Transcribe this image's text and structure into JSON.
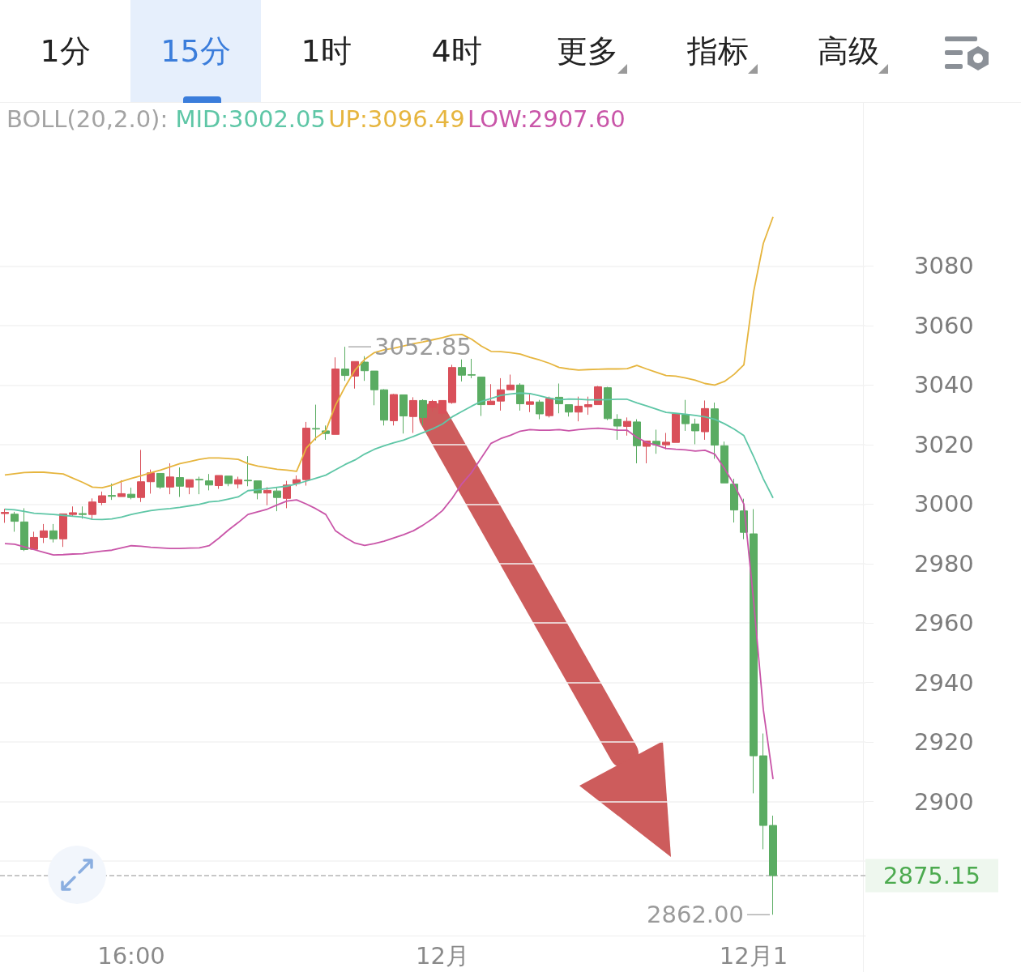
{
  "chart_data": {
    "type": "candlestick",
    "legend_title": "BOLL(20,2.0):",
    "legend": "top",
    "grid": "y",
    "marker": "none",
    "line_style": "solid",
    "categories": [
      null,
      null,
      null,
      null,
      null,
      null,
      null,
      null,
      null,
      null,
      null,
      null,
      null,
      "16:00",
      null,
      null,
      null,
      null,
      null,
      null,
      null,
      null,
      null,
      null,
      null,
      null,
      null,
      null,
      null,
      null,
      null,
      null,
      null,
      null,
      null,
      null,
      null,
      null,
      null,
      null,
      null,
      null,
      null,
      null,
      null,
      "12月",
      null,
      null,
      null,
      null,
      null,
      null,
      null,
      null,
      null,
      null,
      null,
      null,
      null,
      null,
      null,
      null,
      null,
      null,
      null,
      null,
      null,
      null,
      null,
      null,
      null,
      null,
      null,
      null,
      null,
      null,
      null,
      "12月1",
      null,
      null
    ],
    "ohlc": [
      [
        2996.8,
        2998.4,
        2993.7,
        2997.2
      ],
      [
        2996.6,
        2997.4,
        2990.7,
        2994.2
      ],
      [
        2994.0,
        2998.6,
        2984.2,
        2984.7
      ],
      [
        2984.8,
        2990.7,
        2984.8,
        2988.8
      ],
      [
        2988.8,
        2993.3,
        2986.9,
        2991.0
      ],
      [
        2991.0,
        2993.3,
        2987.1,
        2988.3
      ],
      [
        2988.3,
        2996.7,
        2985.6,
        2996.7
      ],
      [
        2996.5,
        2999.2,
        2995.8,
        2997.1
      ],
      [
        2996.8,
        2999.2,
        2995.1,
        2996.5
      ],
      [
        2996.5,
        3001.9,
        2995.1,
        3000.7
      ],
      [
        3000.5,
        3004.2,
        2999.6,
        3002.8
      ],
      [
        3002.9,
        3006.9,
        3001.4,
        3002.6
      ],
      [
        3002.5,
        3008.0,
        3002.5,
        3003.5
      ],
      [
        3003.3,
        3005.5,
        3001.6,
        3002.2
      ],
      [
        3002.2,
        3018.2,
        3000.7,
        3007.5
      ],
      [
        3007.5,
        3011.6,
        3003.5,
        3010.5
      ],
      [
        3010.3,
        3010.3,
        3005.1,
        3005.7
      ],
      [
        3005.7,
        3013.7,
        3003.3,
        3009.1
      ],
      [
        3008.9,
        3012.3,
        3002.4,
        3006.0
      ],
      [
        3005.7,
        3008.2,
        3003.3,
        3008.2
      ],
      [
        3008.3,
        3009.2,
        3003.3,
        3008.1
      ],
      [
        3007.8,
        3010.1,
        3004.6,
        3006.4
      ],
      [
        3006.2,
        3009.6,
        3005.1,
        3009.6
      ],
      [
        3009.4,
        3009.4,
        3006.0,
        3006.9
      ],
      [
        3006.7,
        3009.2,
        3005.3,
        3008.2
      ],
      [
        3008.0,
        3016.1,
        3006.0,
        3007.8
      ],
      [
        3007.8,
        3007.8,
        3001.6,
        3003.7
      ],
      [
        3003.7,
        3005.7,
        2999.6,
        3004.6
      ],
      [
        3004.4,
        3005.5,
        2997.6,
        3002.2
      ],
      [
        3001.9,
        3007.8,
        2998.6,
        3006.4
      ],
      [
        3006.9,
        3009.6,
        3006.0,
        3008.2
      ],
      [
        3008.2,
        3027.6,
        3006.2,
        3025.5
      ],
      [
        3025.4,
        3033.4,
        3021.4,
        3025.2
      ],
      [
        3024.6,
        3026.4,
        3021.6,
        3023.7
      ],
      [
        3023.4,
        3049.3,
        3023.4,
        3045.4
      ],
      [
        3045.4,
        3052.85,
        3041.4,
        3043.2
      ],
      [
        3043.0,
        3047.9,
        3038.8,
        3047.9
      ],
      [
        3047.7,
        3049.7,
        3041.4,
        3044.8
      ],
      [
        3044.7,
        3044.7,
        3033.2,
        3038.4
      ],
      [
        3038.4,
        3038.6,
        3026.4,
        3028.2
      ],
      [
        3028.0,
        3037.0,
        3026.4,
        3036.8
      ],
      [
        3036.7,
        3036.7,
        3023.7,
        3029.6
      ],
      [
        3029.4,
        3035.9,
        3023.9,
        3034.8
      ],
      [
        3034.8,
        3035.2,
        3026.4,
        3029.1
      ],
      [
        3032.5,
        3035.0,
        3031.0,
        3034.5
      ],
      [
        3030.5,
        3034.8,
        3029.5,
        3034.8
      ],
      [
        3034.1,
        3046.8,
        3033.7,
        3045.9
      ],
      [
        3045.9,
        3048.6,
        3041.2,
        3043.3
      ],
      [
        3043.5,
        3048.8,
        3042.3,
        3043.3
      ],
      [
        3042.7,
        3042.7,
        3029.6,
        3033.4
      ],
      [
        3033.4,
        3040.3,
        3033.4,
        3034.6
      ],
      [
        3034.6,
        3042.3,
        3031.4,
        3038.4
      ],
      [
        3038.4,
        3043.5,
        3038.4,
        3040.0
      ],
      [
        3040.0,
        3040.6,
        3031.4,
        3033.7
      ],
      [
        3033.5,
        3037.3,
        3030.9,
        3034.4
      ],
      [
        3034.3,
        3035.0,
        3028.5,
        3030.3
      ],
      [
        3029.7,
        3036.1,
        3029.1,
        3035.5
      ],
      [
        3035.9,
        3040.5,
        3030.5,
        3033.7
      ],
      [
        3033.4,
        3033.4,
        3029.4,
        3030.9
      ],
      [
        3030.9,
        3036.1,
        3027.8,
        3032.9
      ],
      [
        3032.7,
        3036.1,
        3030.0,
        3033.4
      ],
      [
        3033.4,
        3039.7,
        3033.4,
        3039.4
      ],
      [
        3039.1,
        3039.4,
        3028.2,
        3028.7
      ],
      [
        3028.5,
        3030.2,
        3021.6,
        3026.2
      ],
      [
        3026.1,
        3029.1,
        3023.0,
        3027.8
      ],
      [
        3027.6,
        3028.5,
        3013.7,
        3019.6
      ],
      [
        3019.4,
        3021.2,
        3013.7,
        3021.2
      ],
      [
        3021.1,
        3025.0,
        3016.9,
        3019.9
      ],
      [
        3019.9,
        3023.9,
        3018.4,
        3020.8
      ],
      [
        3020.7,
        3030.3,
        3020.7,
        3030.3
      ],
      [
        3030.0,
        3035.0,
        3024.6,
        3027.0
      ],
      [
        3026.9,
        3028.7,
        3020.1,
        3024.6
      ],
      [
        3024.3,
        3034.8,
        3021.6,
        3032.1
      ],
      [
        3032.0,
        3034.1,
        3015.2,
        3019.8
      ],
      [
        3019.6,
        3021.0,
        3007.1,
        3007.1
      ],
      [
        3006.7,
        3008.5,
        2993.8,
        2998.0
      ],
      [
        2997.7,
        3001.8,
        2988.2,
        2990.5
      ],
      [
        2990.0,
        2998.3,
        2902.8,
        2915.4
      ],
      [
        2915.4,
        2922.9,
        2884.0,
        2892.0
      ],
      [
        2892.0,
        2895.3,
        2862.0,
        2875.15
      ]
    ],
    "colors": [
      "#d9505a",
      "#5aac62",
      "#5aac62",
      "#d9505a",
      "#d9505a",
      "#5aac62",
      "#d9505a",
      "#d9505a",
      "#5aac62",
      "#d9505a",
      "#d9505a",
      "#5aac62",
      "#d9505a",
      "#5aac62",
      "#d9505a",
      "#d9505a",
      "#5aac62",
      "#d9505a",
      "#5aac62",
      "#d9505a",
      "#5aac62",
      "#5aac62",
      "#d9505a",
      "#5aac62",
      "#d9505a",
      "#5aac62",
      "#5aac62",
      "#d9505a",
      "#5aac62",
      "#d9505a",
      "#d9505a",
      "#d9505a",
      "#5aac62",
      "#5aac62",
      "#d9505a",
      "#5aac62",
      "#d9505a",
      "#5aac62",
      "#5aac62",
      "#5aac62",
      "#d9505a",
      "#5aac62",
      "#d9505a",
      "#5aac62",
      "#d9505a",
      "#d9505a",
      "#d9505a",
      "#5aac62",
      "#5aac62",
      "#5aac62",
      "#d9505a",
      "#d9505a",
      "#d9505a",
      "#5aac62",
      "#d9505a",
      "#5aac62",
      "#d9505a",
      "#5aac62",
      "#5aac62",
      "#d9505a",
      "#d9505a",
      "#d9505a",
      "#5aac62",
      "#5aac62",
      "#d9505a",
      "#5aac62",
      "#d9505a",
      "#5aac62",
      "#d9505a",
      "#d9505a",
      "#5aac62",
      "#5aac62",
      "#d9505a",
      "#5aac62",
      "#5aac62",
      "#5aac62",
      "#5aac62",
      "#5aac62",
      "#5aac62",
      "#5aac62"
    ],
    "series": [
      {
        "type": "line",
        "name": "MID:3002.05",
        "color": "#5ec6a6",
        "values": [
          2998.3,
          2998.1,
          2997.5,
          2996.9,
          2996.7,
          2996.5,
          2996.2,
          2995.9,
          2995.6,
          2994.9,
          2994.8,
          2995.0,
          2995.6,
          2996.5,
          2997.2,
          2997.8,
          2998.2,
          2998.5,
          2998.9,
          2999.4,
          2999.9,
          3000.7,
          3001.0,
          3001.7,
          3002.4,
          3004.5,
          3004.8,
          3005.2,
          3005.6,
          3006.0,
          3006.8,
          3007.7,
          3008.7,
          3009.7,
          3011.5,
          3013.3,
          3014.8,
          3016.8,
          3018.4,
          3019.6,
          3020.6,
          3021.5,
          3022.7,
          3024.0,
          3025.3,
          3026.9,
          3029.3,
          3031.1,
          3032.9,
          3034.5,
          3035.5,
          3036.5,
          3037.0,
          3037.3,
          3037.1,
          3036.4,
          3035.6,
          3035.0,
          3035.3,
          3035.2,
          3035.0,
          3035.0,
          3035.1,
          3035.2,
          3035.2,
          3034.0,
          3033.0,
          3031.9,
          3030.8,
          3030.5,
          3030.2,
          3029.8,
          3029.3,
          3028.5,
          3027.0,
          3025.2,
          3023.0,
          3016.0,
          3008.5,
          3002.05
        ]
      },
      {
        "type": "line",
        "name": "UP:3096.49",
        "color": "#e6b53e",
        "values": [
          3009.8,
          3010.2,
          3010.6,
          3010.7,
          3010.7,
          3010.4,
          3010.1,
          3008.7,
          3007.3,
          3005.7,
          3005.5,
          3006.3,
          3007.6,
          3008.6,
          3009.5,
          3010.5,
          3011.4,
          3012.5,
          3013.6,
          3014.3,
          3015.0,
          3015.5,
          3015.5,
          3015.3,
          3015.0,
          3013.6,
          3012.8,
          3012.2,
          3011.7,
          3011.4,
          3011.0,
          3018.8,
          3022.3,
          3024.6,
          3033.2,
          3039.5,
          3045.0,
          3048.6,
          3050.9,
          3051.8,
          3052.4,
          3053.1,
          3053.9,
          3054.5,
          3055.2,
          3055.9,
          3056.8,
          3057.0,
          3055.4,
          3053.1,
          3051.3,
          3051.2,
          3050.9,
          3050.4,
          3049.3,
          3048.4,
          3047.3,
          3045.9,
          3045.4,
          3045.0,
          3045.2,
          3045.3,
          3045.4,
          3045.4,
          3045.5,
          3046.6,
          3045.4,
          3044.3,
          3043.2,
          3043.0,
          3042.4,
          3041.6,
          3040.5,
          3040.0,
          3041.2,
          3043.6,
          3046.8,
          3071.3,
          3087.6,
          3096.49
        ]
      },
      {
        "type": "line",
        "name": "LOW:2907.60",
        "color": "#c955a8",
        "values": [
          2986.7,
          2986.5,
          2985.6,
          2984.7,
          2983.8,
          2982.9,
          2983.0,
          2983.2,
          2983.3,
          2983.8,
          2984.2,
          2984.5,
          2985.3,
          2986.0,
          2985.8,
          2985.5,
          2985.3,
          2985.1,
          2985.1,
          2985.2,
          2985.3,
          2986.0,
          2988.5,
          2991.3,
          2993.8,
          2996.5,
          2997.4,
          2998.3,
          2999.7,
          3001.0,
          3001.4,
          3000.0,
          2998.4,
          2996.5,
          2991.0,
          2988.8,
          2986.9,
          2986.1,
          2986.7,
          2987.5,
          2988.6,
          2989.7,
          2991.0,
          2992.9,
          2995.1,
          2997.8,
          3001.9,
          3006.8,
          3010.6,
          3015.5,
          3020.4,
          3022.0,
          3023.1,
          3024.5,
          3025.0,
          3024.8,
          3024.8,
          3025.0,
          3024.6,
          3025.0,
          3025.3,
          3025.5,
          3025.2,
          3024.8,
          3024.8,
          3022.4,
          3020.7,
          3019.8,
          3018.7,
          3018.4,
          3018.2,
          3017.8,
          3018.1,
          3016.8,
          3012.0,
          3006.5,
          3000.0,
          2967.5,
          2930.9,
          2907.6
        ]
      }
    ],
    "ylim": [
      2855,
      3134
    ],
    "yticks": [
      {
        "value": 2880,
        "label": null
      },
      2900,
      2920,
      2940,
      2960,
      2980,
      3000,
      3020,
      3040,
      3060,
      3080
    ],
    "ref_lines": [
      {
        "axis": "y",
        "value": 2875.15,
        "label": "2875.15",
        "color": "#b5b5b5",
        "line_style": "dashed"
      }
    ],
    "annotations": [
      "1分",
      "15分",
      "1时",
      "4时",
      "更多",
      "指标",
      "高级",
      "3052.85",
      "2862.00"
    ]
  }
}
